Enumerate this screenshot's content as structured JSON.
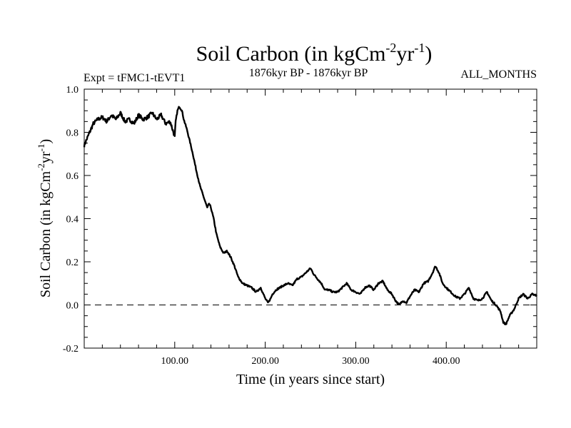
{
  "chart_data": {
    "type": "line",
    "title": "Soil Carbon (in kgCm",
    "title_sup1": "-2",
    "title_mid": "yr",
    "title_sup2": "-1",
    "title_end": ")",
    "subtitle_left": "Expt = tFMC1-tEVT1",
    "subtitle_center": "1876kyr BP - 1876kyr BP",
    "subtitle_right": "ALL_MONTHS",
    "xlabel": "Time (in years since start)",
    "ylabel": "Soil Carbon (in kgCm",
    "ylabel_sup1": "-2",
    "ylabel_mid": "yr",
    "ylabel_sup2": "-1",
    "ylabel_end": ")",
    "xlim": [
      0,
      500
    ],
    "ylim": [
      -0.2,
      1.0
    ],
    "x_ticks": [
      100,
      200,
      300,
      400
    ],
    "x_tick_labels": [
      "100.00",
      "200.00",
      "300.00",
      "400.00"
    ],
    "y_ticks": [
      -0.2,
      0.0,
      0.2,
      0.4,
      0.6,
      0.8,
      1.0
    ],
    "y_tick_labels": [
      "-0.2",
      "0.0",
      "0.2",
      "0.4",
      "0.6",
      "0.8",
      "1.0"
    ],
    "reference_line": {
      "y": 0.0,
      "style": "dashed"
    },
    "series": [
      {
        "name": "Soil Carbon",
        "x": [
          0,
          3,
          6,
          10,
          15,
          20,
          25,
          30,
          35,
          40,
          45,
          50,
          55,
          60,
          65,
          70,
          75,
          80,
          85,
          90,
          95,
          100,
          101,
          103,
          105,
          108,
          110,
          113,
          116,
          120,
          124,
          128,
          132,
          136,
          138,
          140,
          143,
          146,
          150,
          154,
          158,
          162,
          166,
          170,
          175,
          180,
          185,
          190,
          195,
          200,
          203,
          206,
          208,
          212,
          216,
          220,
          225,
          230,
          235,
          240,
          245,
          250,
          254,
          258,
          262,
          266,
          270,
          275,
          280,
          285,
          290,
          295,
          300,
          305,
          310,
          315,
          320,
          325,
          330,
          335,
          340,
          344,
          348,
          352,
          356,
          360,
          365,
          370,
          375,
          380,
          385,
          388,
          392,
          396,
          400,
          405,
          410,
          415,
          420,
          425,
          430,
          435,
          440,
          445,
          450,
          455,
          460,
          463,
          466,
          470,
          475,
          480,
          485,
          490,
          495,
          500
        ],
        "y": [
          0.74,
          0.77,
          0.8,
          0.84,
          0.86,
          0.87,
          0.85,
          0.88,
          0.86,
          0.89,
          0.85,
          0.86,
          0.84,
          0.88,
          0.86,
          0.87,
          0.89,
          0.86,
          0.88,
          0.84,
          0.85,
          0.78,
          0.85,
          0.9,
          0.92,
          0.9,
          0.86,
          0.82,
          0.77,
          0.7,
          0.62,
          0.55,
          0.5,
          0.45,
          0.47,
          0.45,
          0.4,
          0.33,
          0.27,
          0.24,
          0.25,
          0.22,
          0.18,
          0.13,
          0.1,
          0.09,
          0.08,
          0.06,
          0.08,
          0.03,
          0.01,
          0.03,
          0.05,
          0.07,
          0.08,
          0.09,
          0.1,
          0.09,
          0.12,
          0.13,
          0.15,
          0.17,
          0.14,
          0.12,
          0.1,
          0.07,
          0.07,
          0.06,
          0.06,
          0.08,
          0.1,
          0.07,
          0.06,
          0.05,
          0.08,
          0.09,
          0.07,
          0.1,
          0.11,
          0.07,
          0.05,
          0.02,
          0.0,
          0.02,
          0.01,
          0.04,
          0.07,
          0.06,
          0.1,
          0.11,
          0.15,
          0.18,
          0.15,
          0.1,
          0.08,
          0.06,
          0.04,
          0.03,
          0.05,
          0.08,
          0.03,
          0.02,
          0.03,
          0.06,
          0.02,
          0.0,
          -0.03,
          -0.08,
          -0.09,
          -0.05,
          -0.02,
          0.03,
          0.05,
          0.03,
          0.05,
          0.04
        ]
      }
    ]
  }
}
